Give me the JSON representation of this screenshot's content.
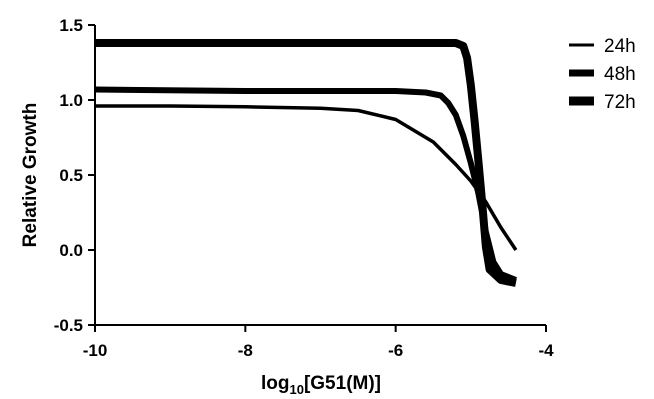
{
  "chart_data": {
    "type": "line",
    "title": "",
    "ylabel": "Relative Growth",
    "xlabel": {
      "prefix": "log",
      "subscript": "10",
      "suffix": "[G51(M)]"
    },
    "xlim": [
      -10,
      -4
    ],
    "ylim": [
      -0.5,
      1.5
    ],
    "x_ticks": [
      -10,
      -8,
      -6,
      -4
    ],
    "x_tick_labels": [
      "-10",
      "-8",
      "-6",
      "-4"
    ],
    "y_ticks": [
      -0.5,
      0.0,
      0.5,
      1.0,
      1.5
    ],
    "y_tick_labels": [
      "-0.5",
      "0.0",
      "0.5",
      "1.0",
      "1.5"
    ],
    "grid": false,
    "legend_position": "top-right",
    "series": [
      {
        "name": "24h",
        "weight": "thin",
        "color": "#000000",
        "x": [
          -10,
          -9,
          -8,
          -7,
          -6.5,
          -6,
          -5.5,
          -5.2,
          -5,
          -4.8,
          -4.6,
          -4.4
        ],
        "y": [
          0.96,
          0.96,
          0.955,
          0.945,
          0.93,
          0.87,
          0.72,
          0.57,
          0.46,
          0.32,
          0.15,
          0.0
        ]
      },
      {
        "name": "48h",
        "weight": "thick",
        "color": "#000000",
        "x": [
          -10,
          -8,
          -6,
          -5.6,
          -5.4,
          -5.3,
          -5.2,
          -5.1,
          -5.0,
          -4.9,
          -4.8,
          -4.7,
          -4.6,
          -4.4
        ],
        "y": [
          1.07,
          1.06,
          1.06,
          1.05,
          1.03,
          0.98,
          0.9,
          0.76,
          0.58,
          0.38,
          0.12,
          -0.08,
          -0.16,
          -0.2
        ]
      },
      {
        "name": "72h",
        "weight": "extra-thick",
        "color": "#000000",
        "x": [
          -10,
          -9,
          -8,
          -7,
          -6,
          -5.5,
          -5.2,
          -5.1,
          -5.05,
          -5.0,
          -4.95,
          -4.9,
          -4.85,
          -4.8,
          -4.75,
          -4.6,
          -4.4
        ],
        "y": [
          1.38,
          1.38,
          1.38,
          1.38,
          1.38,
          1.38,
          1.38,
          1.36,
          1.28,
          1.1,
          0.86,
          0.6,
          0.32,
          0.02,
          -0.13,
          -0.2,
          -0.22
        ]
      }
    ]
  }
}
